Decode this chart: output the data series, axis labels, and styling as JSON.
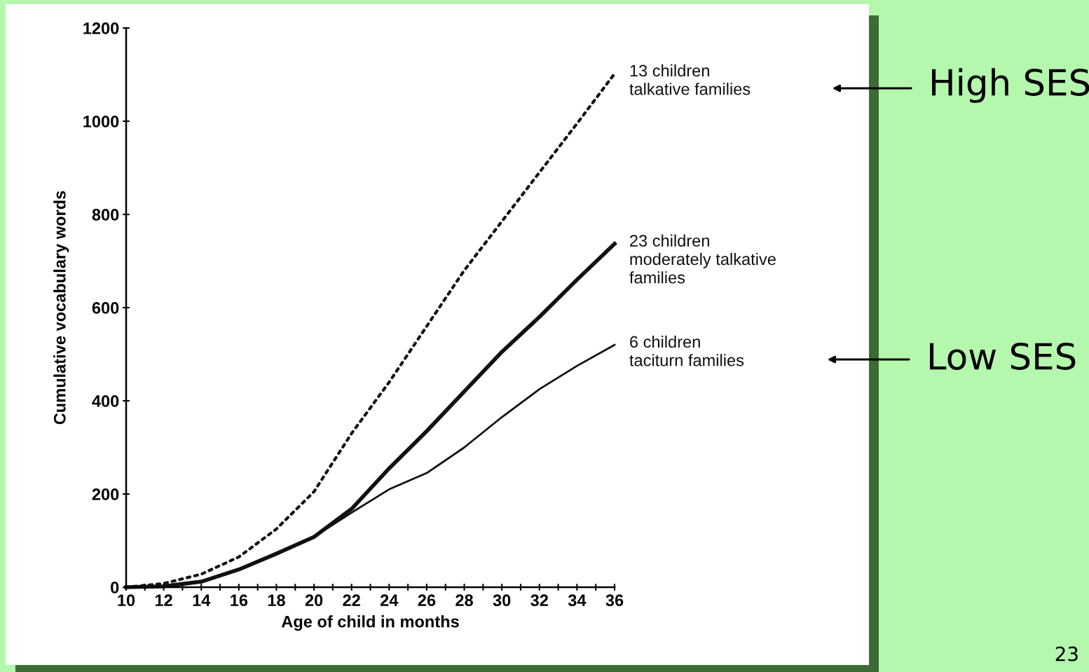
{
  "chart_data": {
    "type": "line",
    "xlabel": "Age of child in months",
    "ylabel": "Cumulative vocabulary words",
    "x": [
      10,
      12,
      14,
      16,
      18,
      20,
      22,
      24,
      26,
      28,
      30,
      32,
      34,
      36
    ],
    "series": [
      {
        "name": "13 children\ntalkative families",
        "color": "#111111",
        "line_style": "dotted",
        "values": [
          0,
          8,
          28,
          65,
          125,
          205,
          330,
          440,
          560,
          680,
          785,
          890,
          995,
          1102
        ]
      },
      {
        "name": "23 children\nmoderately talkative\nfamilies",
        "color": "#111111",
        "line_style": "solid",
        "values": [
          0,
          2,
          12,
          38,
          72,
          108,
          168,
          255,
          335,
          420,
          505,
          580,
          660,
          737
        ]
      },
      {
        "name": "6 children\ntaciturn families",
        "color": "#111111",
        "line_style": "solid",
        "values": [
          0,
          2,
          12,
          38,
          72,
          108,
          160,
          210,
          245,
          300,
          365,
          425,
          475,
          520
        ]
      }
    ],
    "xlim": [
      10,
      36
    ],
    "xticks": [
      10,
      {
        "value": 11,
        "label": null
      },
      12,
      {
        "value": 13,
        "label": null
      },
      14,
      {
        "value": 15,
        "label": null
      },
      16,
      {
        "value": 17,
        "label": null
      },
      18,
      {
        "value": 19,
        "label": null
      },
      20,
      {
        "value": 21,
        "label": null
      },
      22,
      {
        "value": 23,
        "label": null
      },
      24,
      {
        "value": 25,
        "label": null
      },
      26,
      {
        "value": 27,
        "label": null
      },
      28,
      {
        "value": 29,
        "label": null
      },
      30,
      {
        "value": 31,
        "label": null
      },
      32,
      {
        "value": 33,
        "label": null
      },
      34,
      {
        "value": 35,
        "label": null
      },
      36
    ],
    "ylim": [
      0,
      1200
    ],
    "yticks": [
      0,
      200,
      400,
      600,
      800,
      1000,
      1200
    ],
    "grid": false,
    "legend": false,
    "annotations": [
      "High SES",
      "Low SES",
      "23"
    ]
  }
}
